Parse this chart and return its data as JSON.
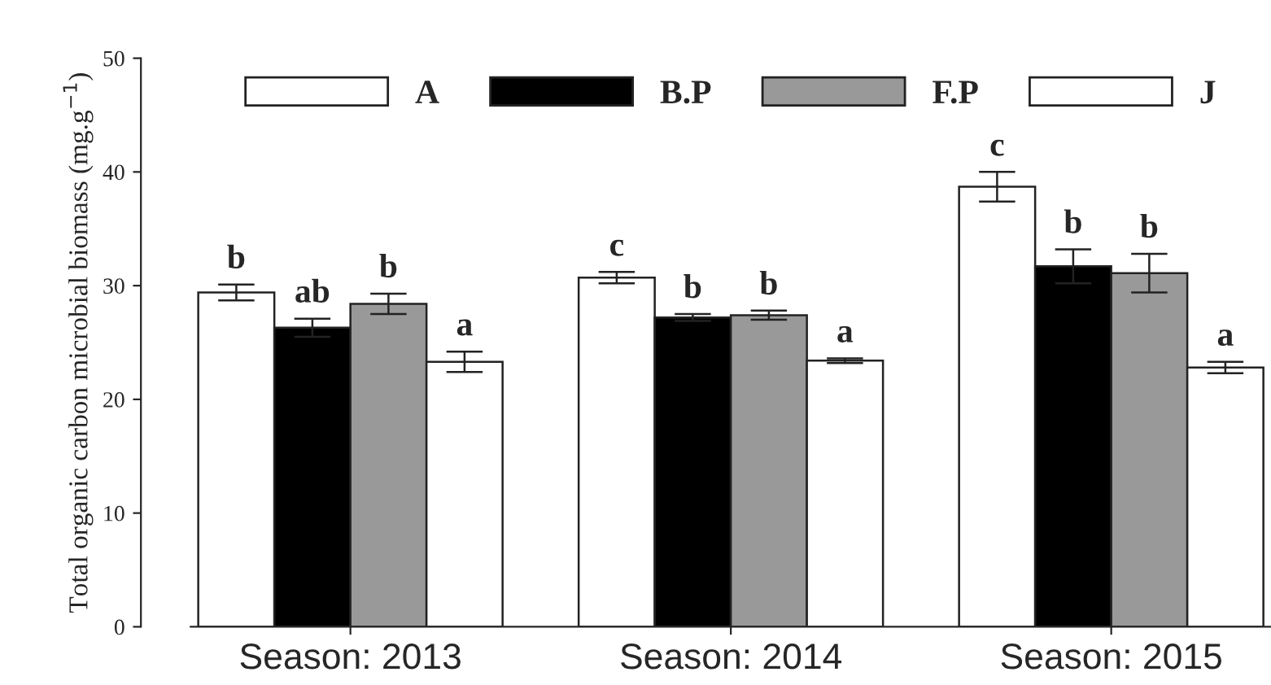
{
  "chart_data": {
    "type": "bar",
    "ylabel": "Total organic carbon microbial biomass (mg.g$^{−1}$)",
    "categories": [
      "Season: 2013",
      "Season: 2014",
      "Season: 2015"
    ],
    "series": [
      {
        "name": "A",
        "color": "#ffffff",
        "values": [
          29.4,
          30.7,
          38.7
        ],
        "errors": [
          0.7,
          0.5,
          1.3
        ],
        "value_labels": [
          "b",
          "c",
          "c"
        ]
      },
      {
        "name": "B.P",
        "color": "#000000",
        "values": [
          26.3,
          27.2,
          31.7
        ],
        "errors": [
          0.8,
          0.3,
          1.5
        ],
        "value_labels": [
          "ab",
          "b",
          "b"
        ]
      },
      {
        "name": "F.P",
        "color": "#999999",
        "values": [
          28.4,
          27.4,
          31.1
        ],
        "errors": [
          0.9,
          0.4,
          1.7
        ],
        "value_labels": [
          "b",
          "b",
          "b"
        ]
      },
      {
        "name": "J",
        "color": "#ffffff",
        "values": [
          23.3,
          23.4,
          22.8
        ],
        "errors": [
          0.9,
          0.2,
          0.5
        ],
        "value_labels": [
          "a",
          "a",
          "a"
        ]
      }
    ],
    "ylim": [
      0,
      50
    ],
    "yticks": [
      0,
      10,
      20,
      30,
      40,
      50
    ],
    "grid": false,
    "legend": "top"
  }
}
